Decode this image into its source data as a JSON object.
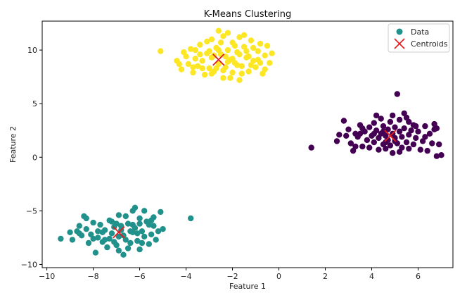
{
  "chart_data": {
    "type": "scatter",
    "title": "K-Means Clustering",
    "xlabel": "Feature 1",
    "ylabel": "Feature 2",
    "xlim": [
      -10.2,
      7.5
    ],
    "ylim": [
      -10.3,
      12.7
    ],
    "xticks": [
      -10,
      -8,
      -6,
      -4,
      -2,
      0,
      2,
      4,
      6
    ],
    "yticks": [
      -10,
      -5,
      0,
      5,
      10
    ],
    "grid": false,
    "legend_position": "top-right",
    "legend": [
      {
        "label": "Data",
        "marker": "circle",
        "color": "#21918c"
      },
      {
        "label": "Centroids",
        "marker": "x",
        "color": "#e41a1c"
      }
    ],
    "series": [
      {
        "color": "#440154",
        "points": [
          [
            1.4,
            0.9
          ],
          [
            2.5,
            1.5
          ],
          [
            2.6,
            2.1
          ],
          [
            2.8,
            3.4
          ],
          [
            3.0,
            2.6
          ],
          [
            3.1,
            1.3
          ],
          [
            3.2,
            0.6
          ],
          [
            3.3,
            2.2
          ],
          [
            3.4,
            1.9
          ],
          [
            3.5,
            3.0
          ],
          [
            3.6,
            1.0
          ],
          [
            3.7,
            2.4
          ],
          [
            3.8,
            1.6
          ],
          [
            3.9,
            2.8
          ],
          [
            3.9,
            0.9
          ],
          [
            4.0,
            2.0
          ],
          [
            4.1,
            3.2
          ],
          [
            4.1,
            1.4
          ],
          [
            4.2,
            2.5
          ],
          [
            4.3,
            0.7
          ],
          [
            4.3,
            1.8
          ],
          [
            4.4,
            3.6
          ],
          [
            4.4,
            2.2
          ],
          [
            4.5,
            1.2
          ],
          [
            4.5,
            2.9
          ],
          [
            4.6,
            2.0
          ],
          [
            4.6,
            0.8
          ],
          [
            4.7,
            1.6
          ],
          [
            4.7,
            2.6
          ],
          [
            4.8,
            3.3
          ],
          [
            4.8,
            1.1
          ],
          [
            4.9,
            2.2
          ],
          [
            4.9,
            0.4
          ],
          [
            5.0,
            1.8
          ],
          [
            5.0,
            2.8
          ],
          [
            5.1,
            5.9
          ],
          [
            5.1,
            1.3
          ],
          [
            5.2,
            2.4
          ],
          [
            5.2,
            3.5
          ],
          [
            5.3,
            0.9
          ],
          [
            5.3,
            1.9
          ],
          [
            5.4,
            2.7
          ],
          [
            5.5,
            1.4
          ],
          [
            5.5,
            3.7
          ],
          [
            5.6,
            2.1
          ],
          [
            5.6,
            0.8
          ],
          [
            5.7,
            2.5
          ],
          [
            5.8,
            1.2
          ],
          [
            5.8,
            3.0
          ],
          [
            5.9,
            1.8
          ],
          [
            6.0,
            2.4
          ],
          [
            6.1,
            0.7
          ],
          [
            6.2,
            1.5
          ],
          [
            6.3,
            2.9
          ],
          [
            6.4,
            0.6
          ],
          [
            6.5,
            2.2
          ],
          [
            6.6,
            1.3
          ],
          [
            6.7,
            3.1
          ],
          [
            6.8,
            2.7
          ],
          [
            6.8,
            0.1
          ],
          [
            6.9,
            1.2
          ],
          [
            7.0,
            0.2
          ],
          [
            4.2,
            3.9
          ],
          [
            5.4,
            4.1
          ],
          [
            3.6,
            2.7
          ],
          [
            4.6,
            1.4
          ],
          [
            5.9,
            2.9
          ],
          [
            6.3,
            1.9
          ],
          [
            3.3,
            1.0
          ],
          [
            4.9,
            3.9
          ],
          [
            5.6,
            3.3
          ],
          [
            4.1,
            2.2
          ],
          [
            5.0,
            1.5
          ],
          [
            6.7,
            2.6
          ],
          [
            3.5,
            2.2
          ],
          [
            5.2,
            0.5
          ],
          [
            4.5,
            2.4
          ],
          [
            2.9,
            2.0
          ]
        ]
      },
      {
        "color": "#21918c",
        "points": [
          [
            -9.4,
            -7.6
          ],
          [
            -9.0,
            -7.0
          ],
          [
            -8.9,
            -7.7
          ],
          [
            -8.7,
            -6.9
          ],
          [
            -8.6,
            -6.4
          ],
          [
            -8.5,
            -7.3
          ],
          [
            -8.4,
            -5.5
          ],
          [
            -8.3,
            -6.7
          ],
          [
            -8.2,
            -8.0
          ],
          [
            -8.1,
            -7.2
          ],
          [
            -8.0,
            -6.1
          ],
          [
            -7.9,
            -8.9
          ],
          [
            -7.8,
            -7.5
          ],
          [
            -7.7,
            -6.3
          ],
          [
            -7.6,
            -7.9
          ],
          [
            -7.5,
            -6.8
          ],
          [
            -7.4,
            -8.4
          ],
          [
            -7.3,
            -5.9
          ],
          [
            -7.2,
            -7.1
          ],
          [
            -7.1,
            -6.5
          ],
          [
            -7.0,
            -8.2
          ],
          [
            -6.9,
            -7.4
          ],
          [
            -6.9,
            -5.4
          ],
          [
            -6.8,
            -6.8
          ],
          [
            -6.7,
            -9.1
          ],
          [
            -6.6,
            -7.7
          ],
          [
            -6.5,
            -6.2
          ],
          [
            -6.4,
            -8.0
          ],
          [
            -6.3,
            -7.0
          ],
          [
            -6.3,
            -5.0
          ],
          [
            -6.2,
            -6.6
          ],
          [
            -6.1,
            -7.8
          ],
          [
            -6.0,
            -8.6
          ],
          [
            -5.9,
            -6.9
          ],
          [
            -5.8,
            -7.4
          ],
          [
            -5.7,
            -6.0
          ],
          [
            -5.6,
            -8.1
          ],
          [
            -5.5,
            -7.2
          ],
          [
            -5.4,
            -6.4
          ],
          [
            -5.3,
            -7.7
          ],
          [
            -5.2,
            -6.9
          ],
          [
            -5.1,
            -5.1
          ],
          [
            -5.0,
            -6.7
          ],
          [
            -3.8,
            -5.7
          ],
          [
            -8.3,
            -5.7
          ],
          [
            -7.6,
            -7.0
          ],
          [
            -6.6,
            -5.5
          ],
          [
            -6.2,
            -4.7
          ],
          [
            -6.0,
            -5.7
          ],
          [
            -5.8,
            -5.0
          ],
          [
            -5.6,
            -6.3
          ],
          [
            -5.4,
            -5.6
          ],
          [
            -7.3,
            -7.6
          ],
          [
            -7.0,
            -6.2
          ],
          [
            -6.7,
            -7.3
          ],
          [
            -6.5,
            -8.5
          ],
          [
            -6.3,
            -6.3
          ],
          [
            -6.1,
            -7.1
          ],
          [
            -7.8,
            -6.9
          ],
          [
            -8.0,
            -7.6
          ],
          [
            -7.2,
            -6.0
          ],
          [
            -6.9,
            -8.7
          ],
          [
            -6.4,
            -6.9
          ],
          [
            -5.9,
            -8.0
          ],
          [
            -5.5,
            -5.9
          ],
          [
            -7.5,
            -7.7
          ],
          [
            -8.6,
            -7.1
          ],
          [
            -6.8,
            -6.4
          ],
          [
            -7.1,
            -7.9
          ],
          [
            -6.0,
            -6.2
          ]
        ]
      },
      {
        "color": "#fde725",
        "points": [
          [
            -5.1,
            9.9
          ],
          [
            -4.4,
            9.0
          ],
          [
            -4.2,
            8.2
          ],
          [
            -4.0,
            9.4
          ],
          [
            -3.9,
            8.7
          ],
          [
            -3.8,
            10.1
          ],
          [
            -3.7,
            7.9
          ],
          [
            -3.6,
            9.2
          ],
          [
            -3.5,
            8.5
          ],
          [
            -3.4,
            10.5
          ],
          [
            -3.3,
            9.0
          ],
          [
            -3.2,
            7.7
          ],
          [
            -3.1,
            9.7
          ],
          [
            -3.0,
            8.3
          ],
          [
            -2.9,
            11.0
          ],
          [
            -2.9,
            9.3
          ],
          [
            -2.8,
            8.0
          ],
          [
            -2.7,
            10.2
          ],
          [
            -2.6,
            11.8
          ],
          [
            -2.6,
            8.7
          ],
          [
            -2.5,
            9.6
          ],
          [
            -2.4,
            7.4
          ],
          [
            -2.4,
            11.3
          ],
          [
            -2.3,
            8.4
          ],
          [
            -2.2,
            10.0
          ],
          [
            -2.1,
            9.1
          ],
          [
            -2.0,
            7.9
          ],
          [
            -2.0,
            10.7
          ],
          [
            -1.9,
            8.8
          ],
          [
            -1.8,
            9.8
          ],
          [
            -1.7,
            7.2
          ],
          [
            -1.7,
            11.2
          ],
          [
            -1.6,
            8.5
          ],
          [
            -1.5,
            10.3
          ],
          [
            -1.4,
            9.3
          ],
          [
            -1.3,
            8.0
          ],
          [
            -1.2,
            10.9
          ],
          [
            -1.1,
            9.0
          ],
          [
            -1.0,
            8.4
          ],
          [
            -0.9,
            9.9
          ],
          [
            -0.8,
            10.6
          ],
          [
            -0.8,
            8.8
          ],
          [
            -0.7,
            7.8
          ],
          [
            -0.6,
            9.5
          ],
          [
            -0.6,
            8.2
          ],
          [
            -0.4,
            8.8
          ],
          [
            -0.3,
            9.7
          ],
          [
            -3.6,
            10.0
          ],
          [
            -3.3,
            8.3
          ],
          [
            -3.0,
            9.9
          ],
          [
            -2.7,
            8.3
          ],
          [
            -2.5,
            10.7
          ],
          [
            -2.2,
            8.9
          ],
          [
            -1.9,
            10.4
          ],
          [
            -1.6,
            7.8
          ],
          [
            -1.4,
            9.9
          ],
          [
            -1.1,
            10.2
          ],
          [
            -2.8,
            9.5
          ],
          [
            -2.3,
            9.4
          ],
          [
            -1.8,
            8.6
          ],
          [
            -1.3,
            9.4
          ],
          [
            -2.1,
            7.4
          ],
          [
            -3.4,
            9.6
          ],
          [
            -2.6,
            10.0
          ],
          [
            -1.5,
            11.4
          ],
          [
            -0.9,
            9.1
          ],
          [
            -4.1,
            9.8
          ],
          [
            -2.0,
            9.2
          ],
          [
            -2.9,
            7.8
          ],
          [
            -1.2,
            8.6
          ],
          [
            -3.7,
            8.4
          ],
          [
            -2.4,
            8.1
          ],
          [
            -0.5,
            10.4
          ],
          [
            -3.1,
            10.8
          ],
          [
            -1.7,
            9.6
          ],
          [
            -2.2,
            11.6
          ],
          [
            -4.3,
            8.7
          ]
        ]
      }
    ],
    "centroids": [
      [
        4.8,
        2.0
      ],
      [
        -6.9,
        -7.0
      ],
      [
        -2.6,
        9.1
      ]
    ]
  }
}
